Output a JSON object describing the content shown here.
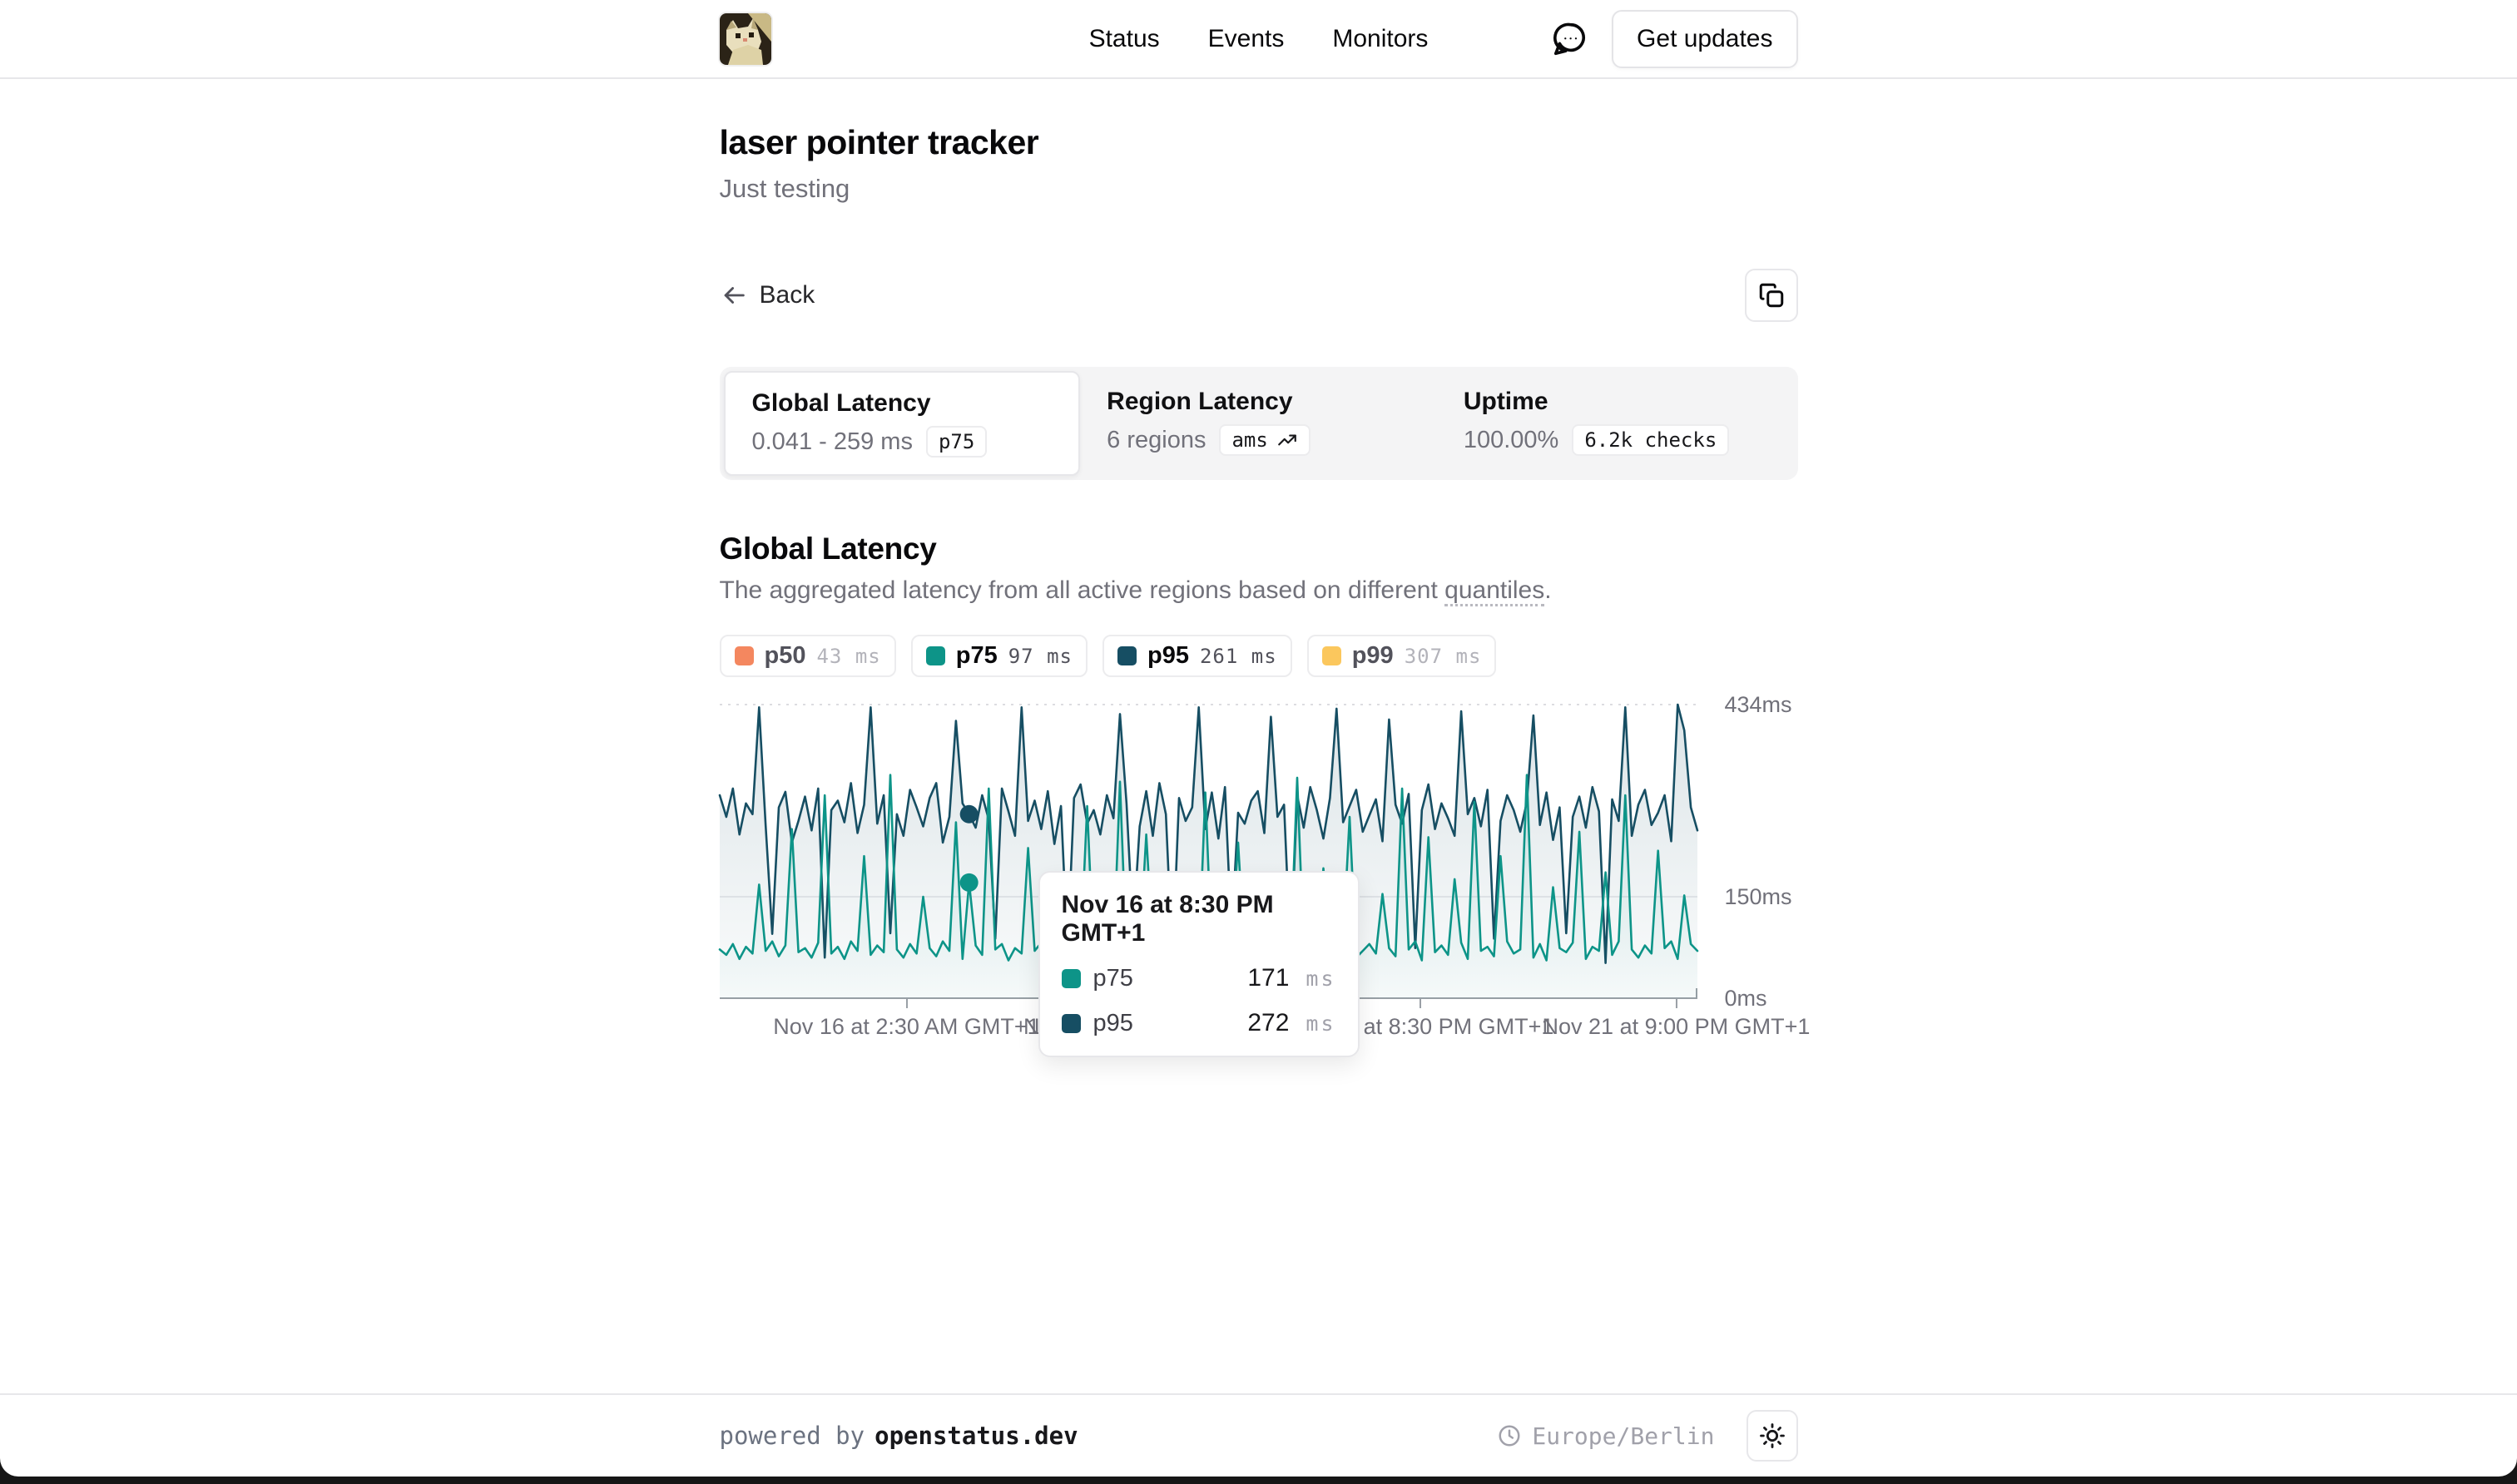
{
  "nav": {
    "links": [
      {
        "label": "Status"
      },
      {
        "label": "Events"
      },
      {
        "label": "Monitors"
      }
    ],
    "get_updates_label": "Get updates"
  },
  "header": {
    "title": "laser pointer tracker",
    "subtitle": "Just testing"
  },
  "toolbar": {
    "back_label": "Back"
  },
  "tabs": [
    {
      "title": "Global Latency",
      "value": "0.041 - 259 ms",
      "badge": "p75",
      "active": true
    },
    {
      "title": "Region Latency",
      "value": "6 regions",
      "badge": "ams",
      "active": false
    },
    {
      "title": "Uptime",
      "value": "100.00%",
      "badge": "6.2k checks",
      "active": false
    }
  ],
  "section": {
    "title": "Global Latency",
    "description_prefix": "The aggregated latency from all active regions based on different ",
    "description_link": "quantiles",
    "description_suffix": "."
  },
  "legend": [
    {
      "label": "p50",
      "value": "43",
      "unit": "ms",
      "color": "#f4875f",
      "active": false
    },
    {
      "label": "p75",
      "value": "97",
      "unit": "ms",
      "color": "#0d9488",
      "active": true
    },
    {
      "label": "p95",
      "value": "261",
      "unit": "ms",
      "color": "#164e63",
      "active": true
    },
    {
      "label": "p99",
      "value": "307",
      "unit": "ms",
      "color": "#fbc75d",
      "active": false
    }
  ],
  "chart_data": {
    "type": "line",
    "title": "Global Latency",
    "xlabel": "",
    "ylabel": "ms",
    "ylim": [
      0,
      434
    ],
    "grid": true,
    "legend_position": "top",
    "yticks": [
      {
        "value": 434,
        "label": "434ms"
      },
      {
        "value": 150,
        "label": "150ms"
      },
      {
        "value": 0,
        "label": "0ms"
      }
    ],
    "xticks": [
      {
        "pos": 0.1915,
        "label": "Nov 16 at 2:30 AM GMT+1"
      },
      {
        "pos": 0.4536,
        "label": "Nov 17 at 11:30 PM GMT+1"
      },
      {
        "pos": 0.7166,
        "label": "Nov 19 at 8:30 PM GMT+1"
      },
      {
        "pos": 0.9787,
        "label": "Nov 21 at 9:00 PM GMT+1"
      }
    ],
    "hover_index": 38,
    "series": [
      {
        "name": "p95",
        "color": "#164e63",
        "fill_opacity_top": 0.15,
        "fill_opacity_bottom": 0.02,
        "values": [
          300,
          268,
          310,
          242,
          288,
          272,
          430,
          255,
          95,
          282,
          305,
          230,
          262,
          298,
          248,
          310,
          60,
          278,
          292,
          260,
          318,
          244,
          286,
          430,
          258,
          300,
          96,
          272,
          240,
          308,
          282,
          254,
          296,
          318,
          230,
          268,
          410,
          288,
          272,
          252,
          300,
          264,
          88,
          310,
          276,
          240,
          430,
          262,
          292,
          250,
          306,
          228,
          284,
          70,
          296,
          316,
          258,
          278,
          242,
          300,
          266,
          420,
          288,
          98,
          254,
          306,
          240,
          318,
          272,
          52,
          296,
          262,
          282,
          430,
          250,
          304,
          236,
          312,
          92,
          274,
          258,
          292,
          306,
          244,
          416,
          268,
          286,
          60,
          300,
          252,
          312,
          278,
          236,
          296,
          428,
          260,
          284,
          308,
          246,
          270,
          294,
          232,
          412,
          286,
          258,
          302,
          74,
          278,
          316,
          250,
          288,
          266,
          240,
          424,
          272,
          296,
          254,
          308,
          88,
          262,
          300,
          278,
          246,
          290,
          418,
          256,
          304,
          234,
          282,
          96,
          268,
          298,
          252,
          312,
          276,
          52,
          294,
          262,
          430,
          240,
          286,
          308,
          256,
          274,
          300,
          232,
          434,
          396,
          282,
          248
        ]
      },
      {
        "name": "p75",
        "color": "#0d9488",
        "fill_opacity_top": 0.12,
        "fill_opacity_bottom": 0.02,
        "values": [
          72,
          64,
          80,
          58,
          76,
          66,
          168,
          70,
          84,
          62,
          78,
          250,
          68,
          74,
          60,
          82,
          300,
          66,
          76,
          58,
          84,
          70,
          210,
          64,
          78,
          68,
          330,
          72,
          60,
          80,
          66,
          150,
          74,
          62,
          84,
          70,
          260,
          58,
          171,
          78,
          64,
          310,
          72,
          80,
          56,
          74,
          66,
          222,
          70,
          82,
          60,
          174,
          76,
          64,
          84,
          68,
          284,
          58,
          72,
          78,
          66,
          320,
          62,
          80,
          70,
          242,
          74,
          60,
          84,
          64,
          182,
          72,
          78,
          58,
          304,
          66,
          76,
          68,
          84,
          230,
          62,
          74,
          80,
          56,
          160,
          70,
          82,
          66,
          326,
          72,
          58,
          78,
          192,
          64,
          76,
          84,
          268,
          60,
          70,
          80,
          66,
          154,
          74,
          62,
          310,
          72,
          84,
          56,
          238,
          68,
          78,
          64,
          176,
          82,
          58,
          290,
          70,
          76,
          62,
          210,
          84,
          66,
          72,
          330,
          60,
          80,
          56,
          164,
          74,
          68,
          82,
          246,
          58,
          76,
          70,
          186,
          64,
          84,
          300,
          72,
          60,
          78,
          66,
          218,
          74,
          84,
          58,
          152,
          80,
          70
        ]
      }
    ]
  },
  "tooltip": {
    "title": "Nov 16 at 8:30 PM GMT+1",
    "rows": [
      {
        "label": "p75",
        "value": "171",
        "unit": "ms",
        "color": "#0d9488"
      },
      {
        "label": "p95",
        "value": "272",
        "unit": "ms",
        "color": "#164e63"
      }
    ]
  },
  "footer": {
    "powered_prefix": "powered by",
    "brand": "openstatus.dev",
    "timezone": "Europe/Berlin"
  }
}
